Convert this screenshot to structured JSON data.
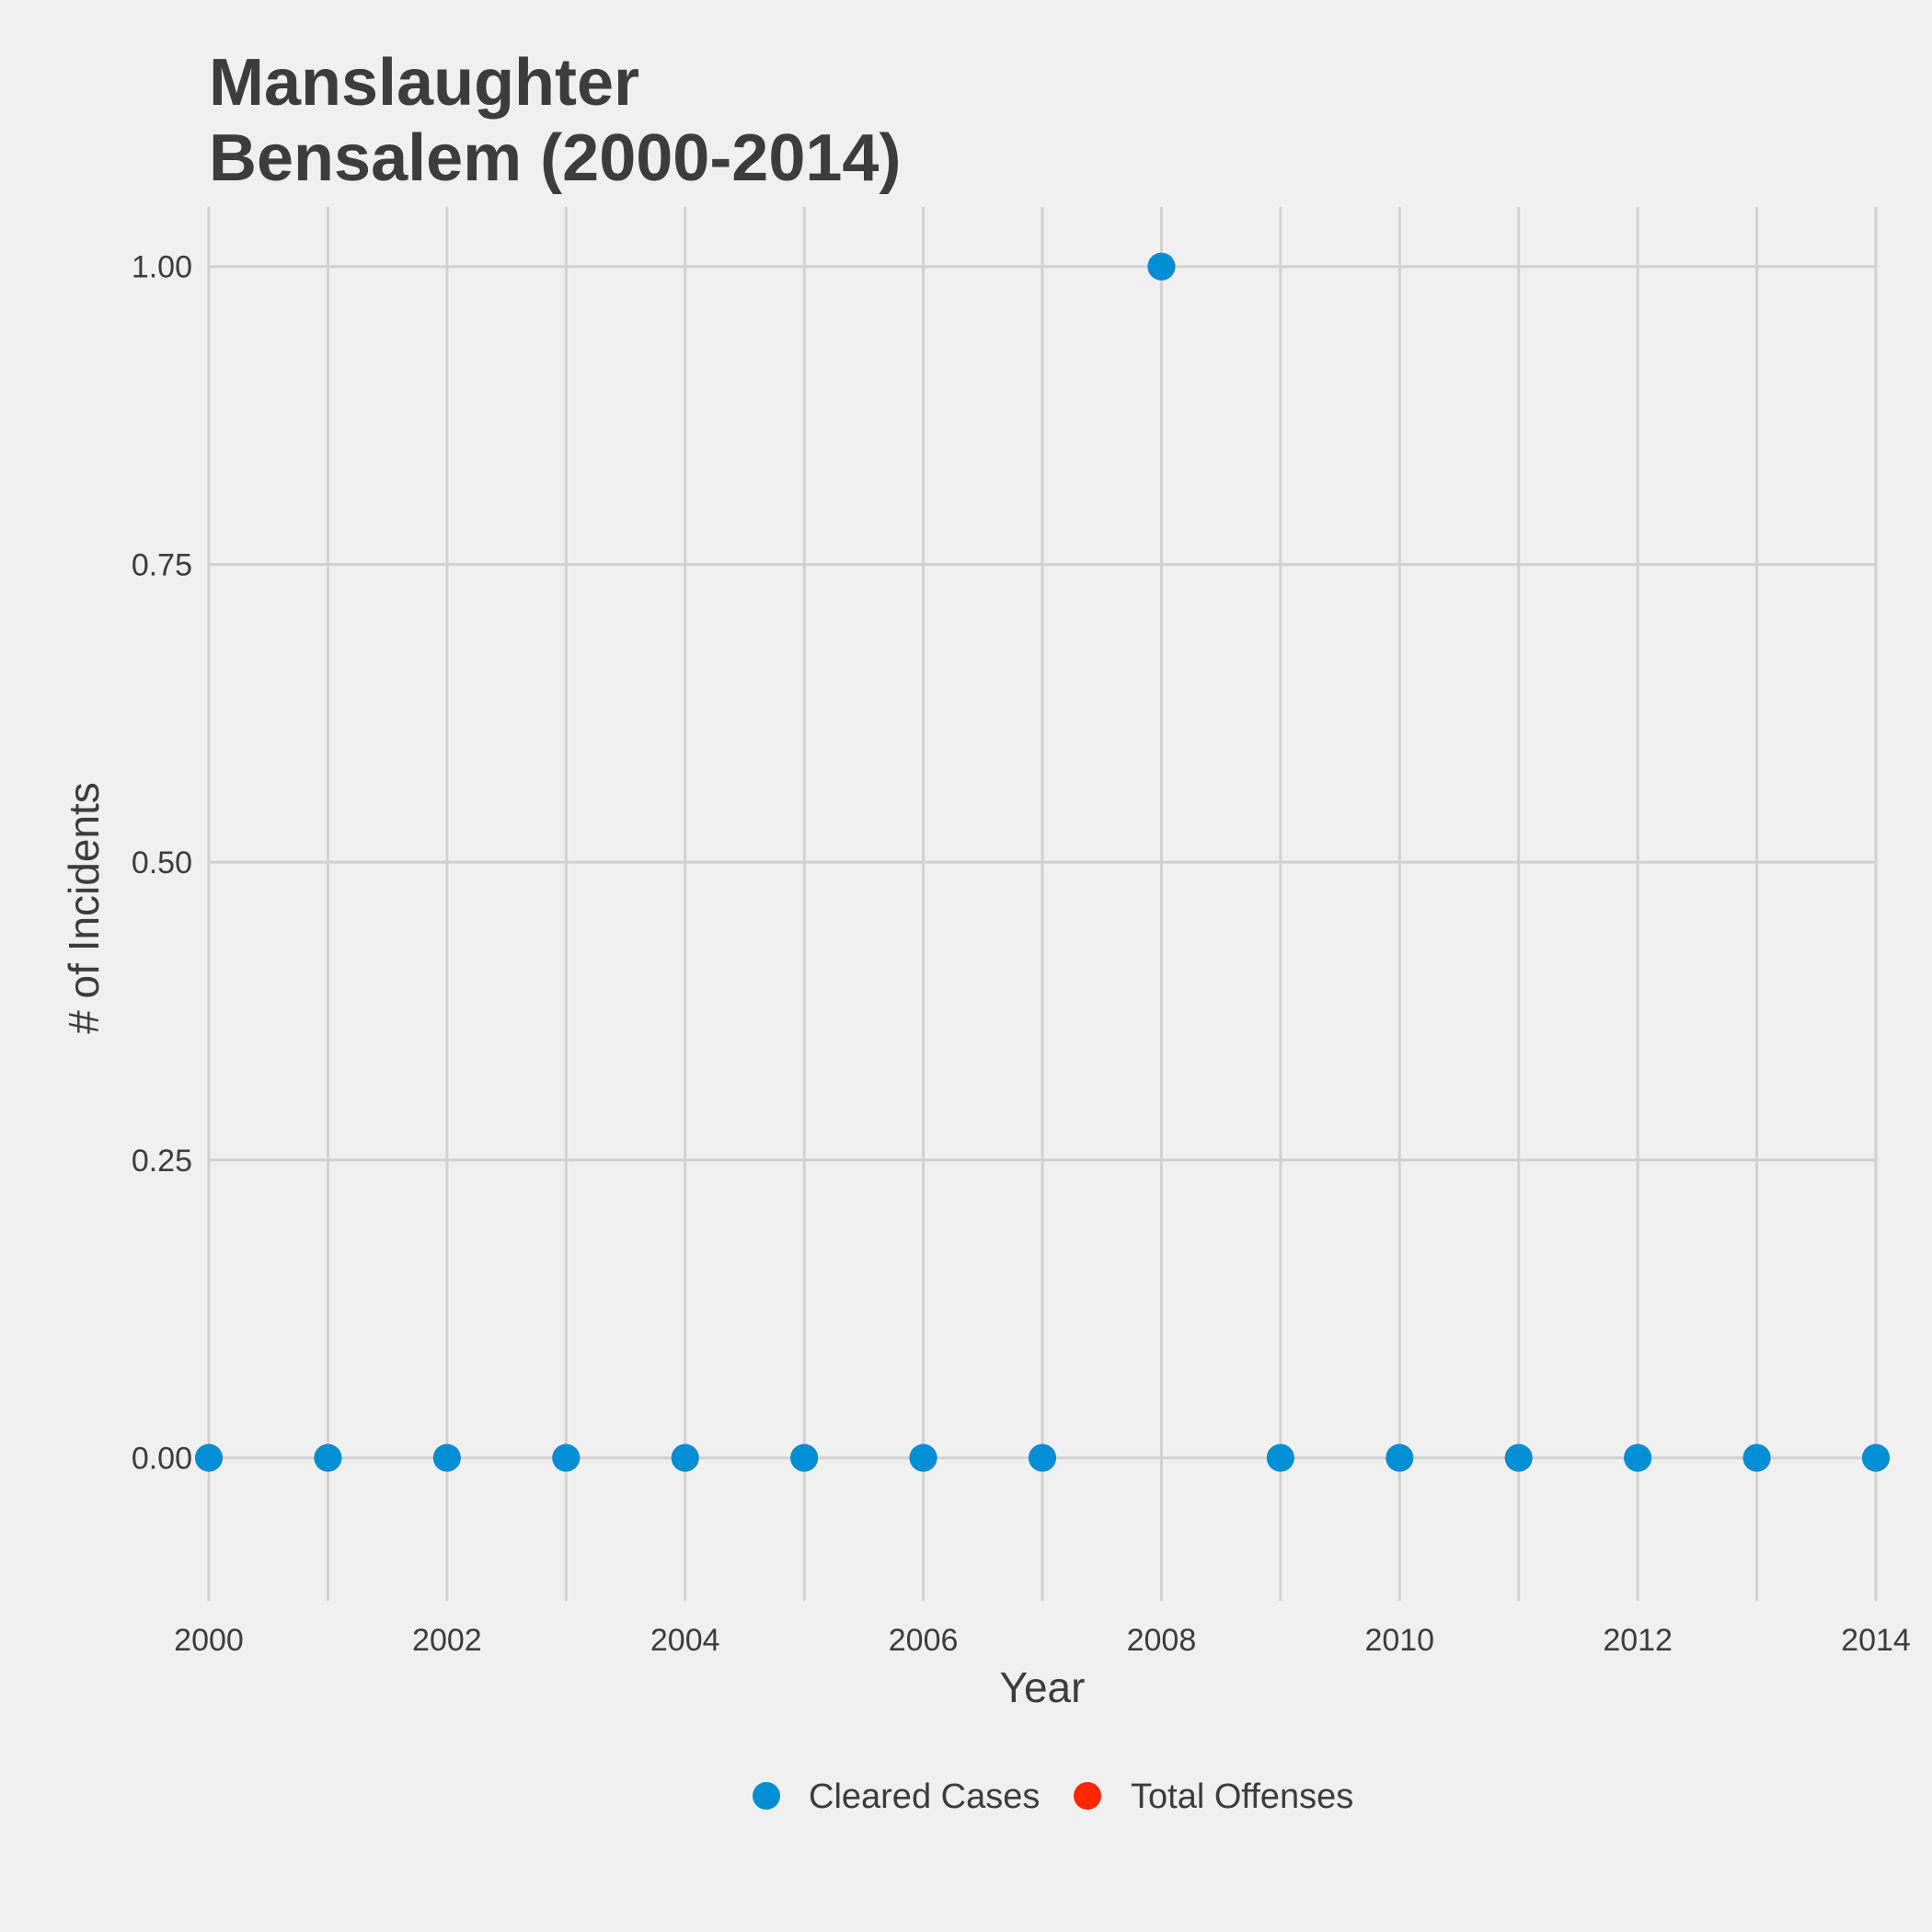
{
  "chart_data": {
    "type": "scatter",
    "title_line1": "Manslaughter",
    "title_line2": "Bensalem (2000-2014)",
    "xlabel": "Year",
    "ylabel": "# of Incidents",
    "x_ticks": [
      "2000",
      "2002",
      "2004",
      "2006",
      "2008",
      "2010",
      "2012",
      "2014"
    ],
    "y_ticks": [
      "0.00",
      "0.25",
      "0.50",
      "0.75",
      "1.00"
    ],
    "xlim": [
      2000,
      2014
    ],
    "ylim": [
      -0.12,
      1.05
    ],
    "grid": true,
    "legend_position": "bottom",
    "series": [
      {
        "name": "Total Offenses",
        "color": "#ff2700",
        "x": [
          2000,
          2001,
          2002,
          2003,
          2004,
          2005,
          2006,
          2007,
          2008,
          2009,
          2010,
          2011,
          2012,
          2013,
          2014
        ],
        "y": [
          0,
          0,
          0,
          0,
          0,
          0,
          0,
          0,
          1,
          0,
          0,
          0,
          0,
          0,
          0
        ]
      },
      {
        "name": "Cleared Cases",
        "color": "#008fd5",
        "x": [
          2000,
          2001,
          2002,
          2003,
          2004,
          2005,
          2006,
          2007,
          2008,
          2009,
          2010,
          2011,
          2012,
          2013,
          2014
        ],
        "y": [
          0,
          0,
          0,
          0,
          0,
          0,
          0,
          0,
          1,
          0,
          0,
          0,
          0,
          0,
          0
        ]
      }
    ],
    "legend": [
      {
        "label": "Cleared Cases",
        "color": "#008fd5"
      },
      {
        "label": "Total Offenses",
        "color": "#ff2700"
      }
    ]
  }
}
